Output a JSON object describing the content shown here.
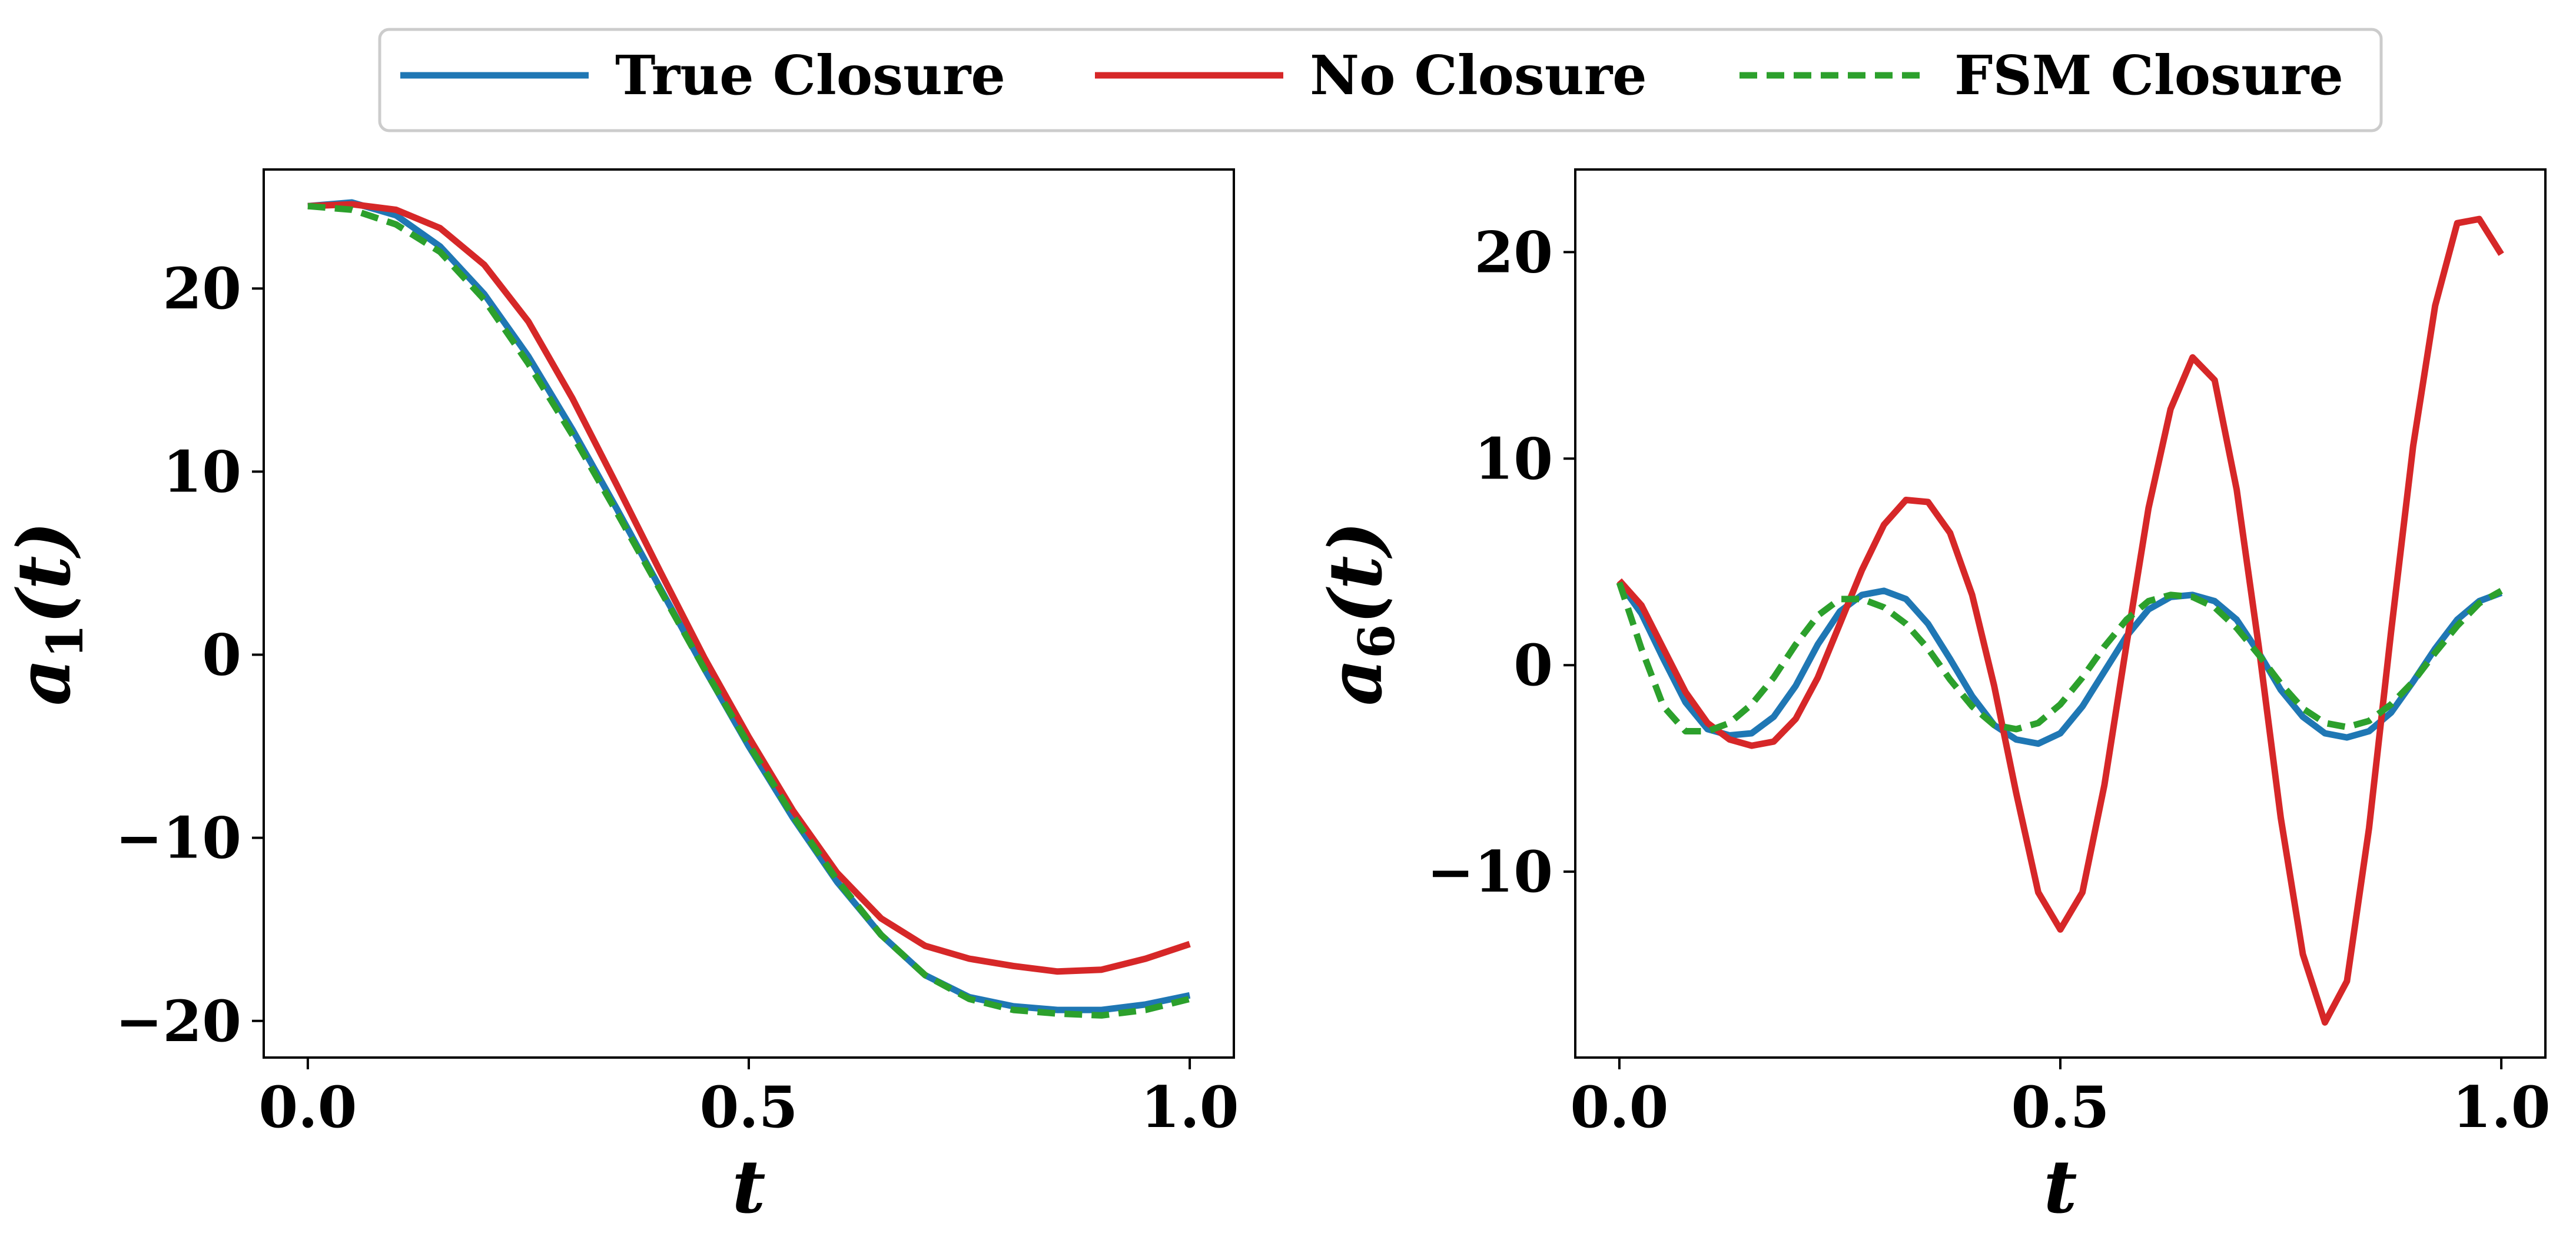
{
  "colors": {
    "true_closure": "#1f77b4",
    "no_closure": "#d62728",
    "fsm_closure": "#2ca02c"
  },
  "legend": {
    "placement": "top-center",
    "entries": [
      {
        "label": "True Closure",
        "color": "#1f77b4",
        "style": "solid"
      },
      {
        "label": "No Closure",
        "color": "#d62728",
        "style": "solid"
      },
      {
        "label": "FSM Closure",
        "color": "#2ca02c",
        "style": "dashed"
      }
    ]
  },
  "chart_data": [
    {
      "type": "line",
      "xlabel": "t",
      "ylabel_base": "a",
      "ylabel_sub": "1",
      "ylabel_rest": "(t)",
      "xlim": [
        -0.05,
        1.05
      ],
      "ylim": [
        -22,
        26.5
      ],
      "xticks": [
        0.0,
        0.5,
        1.0
      ],
      "xtick_labels": [
        "0.0",
        "0.5",
        "1.0"
      ],
      "yticks": [
        20,
        10,
        0,
        -10,
        -20
      ],
      "ytick_labels": [
        "20",
        "10",
        "0",
        "−10",
        "−20"
      ],
      "grid": false,
      "x": [
        0.0,
        0.05,
        0.1,
        0.15,
        0.2,
        0.25,
        0.3,
        0.35,
        0.4,
        0.45,
        0.5,
        0.55,
        0.6,
        0.65,
        0.7,
        0.75,
        0.8,
        0.85,
        0.9,
        0.95,
        1.0
      ],
      "series": [
        {
          "name": "True Closure",
          "values": [
            24.5,
            24.7,
            24.0,
            22.3,
            19.7,
            16.3,
            12.3,
            8.0,
            3.6,
            -0.8,
            -5.0,
            -8.9,
            -12.4,
            -15.3,
            -17.5,
            -18.7,
            -19.2,
            -19.4,
            -19.4,
            -19.1,
            -18.6
          ]
        },
        {
          "name": "No Closure",
          "values": [
            24.5,
            24.6,
            24.3,
            23.3,
            21.3,
            18.2,
            14.0,
            9.3,
            4.5,
            -0.2,
            -4.5,
            -8.5,
            -11.9,
            -14.4,
            -15.9,
            -16.6,
            -17.0,
            -17.3,
            -17.2,
            -16.6,
            -15.8
          ]
        },
        {
          "name": "FSM Closure",
          "values": [
            24.5,
            24.3,
            23.5,
            22.0,
            19.4,
            15.9,
            12.0,
            7.8,
            3.5,
            -0.8,
            -4.9,
            -8.8,
            -12.3,
            -15.3,
            -17.5,
            -18.8,
            -19.4,
            -19.6,
            -19.7,
            -19.4,
            -18.8
          ]
        }
      ]
    },
    {
      "type": "line",
      "xlabel": "t",
      "ylabel_base": "a",
      "ylabel_sub": "6",
      "ylabel_rest": "(t)",
      "xlim": [
        -0.05,
        1.05
      ],
      "ylim": [
        -19,
        24
      ],
      "xticks": [
        0.0,
        0.5,
        1.0
      ],
      "xtick_labels": [
        "0.0",
        "0.5",
        "1.0"
      ],
      "yticks": [
        20,
        10,
        0,
        -10
      ],
      "ytick_labels": [
        "20",
        "10",
        "0",
        "−10"
      ],
      "grid": false,
      "x": [
        0.0,
        0.025,
        0.05,
        0.075,
        0.1,
        0.125,
        0.15,
        0.175,
        0.2,
        0.225,
        0.25,
        0.275,
        0.3,
        0.325,
        0.35,
        0.375,
        0.4,
        0.425,
        0.45,
        0.475,
        0.5,
        0.525,
        0.55,
        0.575,
        0.6,
        0.625,
        0.65,
        0.675,
        0.7,
        0.725,
        0.75,
        0.775,
        0.8,
        0.825,
        0.85,
        0.875,
        0.9,
        0.925,
        0.95,
        0.975,
        1.0
      ],
      "series": [
        {
          "name": "True Closure",
          "values": [
            4.0,
            2.5,
            0.3,
            -1.8,
            -3.1,
            -3.4,
            -3.3,
            -2.5,
            -1.0,
            1.0,
            2.6,
            3.4,
            3.6,
            3.2,
            2.0,
            0.3,
            -1.5,
            -2.9,
            -3.6,
            -3.8,
            -3.3,
            -2.0,
            -0.3,
            1.4,
            2.7,
            3.3,
            3.4,
            3.1,
            2.2,
            0.6,
            -1.2,
            -2.5,
            -3.3,
            -3.5,
            -3.2,
            -2.3,
            -0.8,
            0.8,
            2.2,
            3.1,
            3.5
          ]
        },
        {
          "name": "No Closure",
          "values": [
            4.1,
            2.9,
            0.8,
            -1.3,
            -2.8,
            -3.6,
            -3.9,
            -3.7,
            -2.6,
            -0.6,
            2.0,
            4.6,
            6.8,
            8.0,
            7.9,
            6.4,
            3.4,
            -1.0,
            -6.2,
            -11.0,
            -12.8,
            -11.0,
            -5.8,
            1.0,
            7.6,
            12.4,
            14.9,
            13.8,
            8.5,
            0.9,
            -7.4,
            -14.0,
            -17.3,
            -15.3,
            -7.9,
            1.6,
            10.6,
            17.4,
            21.4,
            21.6,
            19.9
          ]
        },
        {
          "name": "FSM Closure",
          "values": [
            4.0,
            0.8,
            -2.0,
            -3.2,
            -3.2,
            -2.8,
            -1.9,
            -0.6,
            1.0,
            2.4,
            3.2,
            3.2,
            2.8,
            2.0,
            0.8,
            -0.7,
            -2.0,
            -2.9,
            -3.1,
            -2.8,
            -1.9,
            -0.6,
            0.9,
            2.2,
            3.1,
            3.4,
            3.3,
            2.8,
            1.8,
            0.5,
            -0.9,
            -2.1,
            -2.8,
            -3.0,
            -2.7,
            -1.9,
            -0.8,
            0.6,
            1.9,
            3.0,
            3.6
          ]
        }
      ]
    }
  ]
}
